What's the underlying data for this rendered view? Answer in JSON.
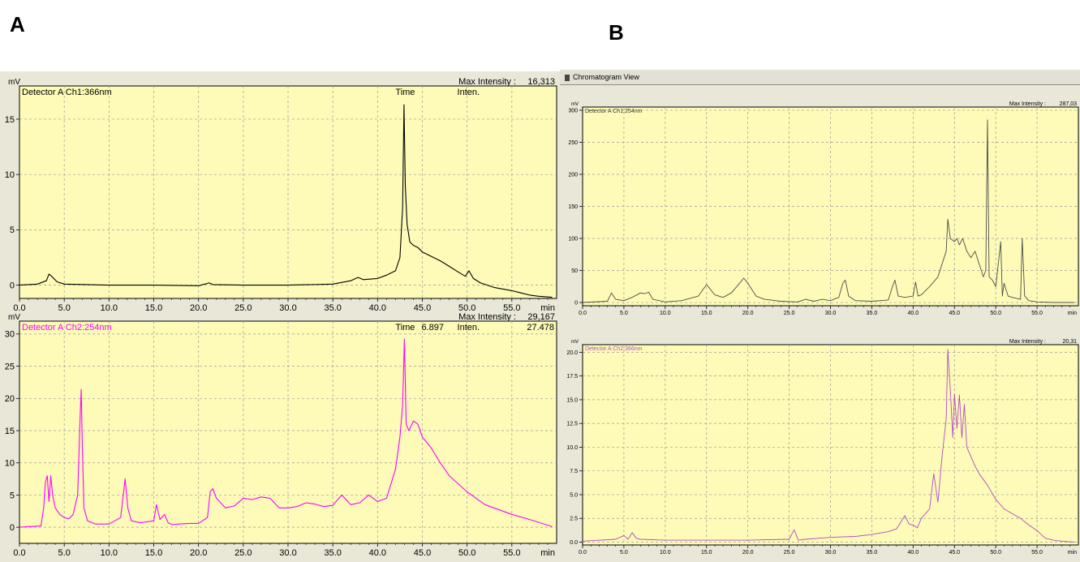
{
  "panel_labels": {
    "a": "A",
    "b": "B"
  },
  "window": {
    "title": "Chromatogram View"
  },
  "colors": {
    "plot_bg": "#fdfbb7",
    "grid": "#9b9b9b",
    "black_trace": "#000000",
    "magenta_trace": "#ff00ff",
    "pale_magenta_trace": "#b24cc8",
    "frame_bg": "#e9e7d8"
  },
  "chart_data": [
    {
      "type": "line",
      "panel": "A",
      "y_unit": "mV",
      "channel_label": "Detector A Ch1:366nm",
      "max_intensity_label": "Max Intensity :",
      "max_intensity_value": "16,313",
      "readout": {
        "time_label": "Time",
        "time_value": "",
        "inten_label": "Inten.",
        "inten_value": ""
      },
      "x_unit": "min",
      "x_ticks": [
        "0.0",
        "5.0",
        "10.0",
        "15.0",
        "20.0",
        "25.0",
        "30.0",
        "35.0",
        "40.0",
        "45.0",
        "50.0",
        "55.0"
      ],
      "y_ticks": [
        "0",
        "5",
        "10",
        "15"
      ],
      "y_tick_values": [
        0,
        5,
        10,
        15
      ],
      "xlim": [
        0,
        60
      ],
      "ylim": [
        -1.2,
        18
      ],
      "grid": true,
      "series": [
        {
          "color": "#000000",
          "x": [
            0,
            2,
            3,
            3.3,
            3.6,
            4.2,
            5,
            10,
            15,
            20,
            21.2,
            21.6,
            25,
            30,
            35,
            37,
            37.8,
            38.4,
            40,
            41,
            42,
            42.5,
            42.8,
            42.95,
            43.1,
            43.3,
            43.6,
            44,
            44.5,
            45,
            46,
            47,
            48,
            49,
            49.8,
            50.2,
            50.7,
            51.5,
            53,
            55,
            56,
            57,
            58,
            59.5
          ],
          "y": [
            0,
            0.1,
            0.4,
            1.0,
            0.8,
            0.3,
            0.1,
            0,
            0,
            -0.05,
            0.2,
            0.05,
            0,
            0,
            0.1,
            0.4,
            0.7,
            0.5,
            0.6,
            0.9,
            1.3,
            2.5,
            7,
            16.3,
            9,
            5.5,
            3.9,
            3.6,
            3.4,
            3.0,
            2.6,
            2.2,
            1.7,
            1.2,
            0.8,
            1.3,
            0.6,
            0.2,
            -0.2,
            -0.5,
            -0.7,
            -0.9,
            -1.0,
            -1.1
          ]
        }
      ]
    },
    {
      "type": "line",
      "panel": "A",
      "y_unit": "mV",
      "channel_label": "Detector A Ch2:254nm",
      "max_intensity_label": "Max Intensity :",
      "max_intensity_value": "29,167",
      "readout": {
        "time_label": "Time",
        "time_value": "6.897",
        "inten_label": "Inten.",
        "inten_value": "27.478"
      },
      "x_unit": "min",
      "x_ticks": [
        "0.0",
        "5.0",
        "10.0",
        "15.0",
        "20.0",
        "25.0",
        "30.0",
        "35.0",
        "40.0",
        "45.0",
        "50.0",
        "55.0"
      ],
      "y_ticks": [
        "0",
        "5",
        "10",
        "15",
        "20",
        "25",
        "30"
      ],
      "y_tick_values": [
        0,
        5,
        10,
        15,
        20,
        25,
        30
      ],
      "xlim": [
        0,
        60
      ],
      "ylim": [
        -2.5,
        32
      ],
      "grid": true,
      "series": [
        {
          "color": "#ff00ff",
          "x": [
            0,
            2.4,
            2.7,
            2.9,
            3.1,
            3.3,
            3.5,
            3.7,
            4.0,
            4.5,
            5,
            5.5,
            6.0,
            6.5,
            6.8,
            6.9,
            7.0,
            7.2,
            7.6,
            8.5,
            10,
            11.3,
            11.8,
            12.1,
            12.5,
            13.5,
            15,
            15.3,
            15.7,
            16.2,
            16.6,
            17.1,
            17.8,
            19,
            20,
            21,
            21.3,
            21.6,
            22,
            23,
            24,
            25,
            26,
            27,
            28,
            29,
            30,
            31,
            32,
            33,
            34,
            35,
            36,
            37,
            38,
            39,
            40,
            41,
            42,
            42.5,
            42.8,
            43.0,
            43.2,
            43.5,
            44,
            44.5,
            45,
            45.6,
            46,
            47,
            48,
            50,
            52,
            55,
            57,
            59.5
          ],
          "y": [
            0,
            0.2,
            3,
            7,
            8,
            4,
            8,
            5,
            3,
            2,
            1.5,
            1.3,
            2,
            5,
            18,
            21.4,
            14,
            3,
            1,
            0.5,
            0.5,
            1.5,
            7.5,
            3,
            1,
            0.7,
            1,
            3.5,
            1.2,
            2,
            0.7,
            0.4,
            0.5,
            0.6,
            0.6,
            1.5,
            5.5,
            6,
            4.5,
            3,
            3.3,
            4.5,
            4.3,
            4.7,
            4.5,
            3,
            3,
            3.2,
            3.8,
            3.6,
            3.2,
            3.4,
            5,
            3.5,
            3.8,
            5,
            4,
            4.5,
            9,
            14,
            19,
            29.2,
            16,
            15,
            16.5,
            16,
            14,
            13,
            12.3,
            10,
            8,
            5.5,
            3.5,
            2,
            1.2,
            0.1
          ]
        }
      ]
    },
    {
      "type": "line",
      "panel": "B",
      "y_unit": "mV",
      "channel_label": "Detector A Ch1:254nm",
      "max_intensity_label": "Max Intensity :",
      "max_intensity_value": "287,03",
      "x_unit": "min",
      "x_ticks": [
        "0.0",
        "5.0",
        "10.0",
        "15.0",
        "20.0",
        "25.0",
        "30.0",
        "35.0",
        "40.0",
        "45.0",
        "50.0",
        "55.0"
      ],
      "y_ticks": [
        "0",
        "50",
        "100",
        "150",
        "200",
        "250",
        "300"
      ],
      "y_tick_values": [
        0,
        50,
        100,
        150,
        200,
        250,
        300
      ],
      "xlim": [
        0,
        60
      ],
      "ylim": [
        -5,
        305
      ],
      "grid": true,
      "series": [
        {
          "color": "#4d4d4d",
          "x": [
            0,
            3,
            3.5,
            4,
            5,
            6,
            7,
            7.5,
            8,
            8.5,
            10,
            12,
            14,
            15,
            16,
            17,
            18,
            19,
            19.5,
            20,
            21,
            22,
            24,
            26,
            27,
            28,
            29,
            30,
            31,
            31.5,
            31.8,
            32.2,
            33,
            35,
            37,
            37.5,
            37.8,
            38.2,
            39,
            40,
            40.3,
            40.6,
            41,
            42,
            43,
            44,
            44.2,
            44.5,
            45,
            45.3,
            45.6,
            46,
            46.5,
            47,
            47.5,
            48,
            48.5,
            48.8,
            49.0,
            49.2,
            49.6,
            50,
            50.6,
            50.8,
            51.0,
            51.5,
            52,
            53,
            53.2,
            53.5,
            54,
            55,
            57,
            59.5
          ],
          "y": [
            0,
            2,
            15,
            5,
            3,
            8,
            15,
            14,
            16,
            5,
            1,
            3,
            10,
            28,
            12,
            8,
            15,
            30,
            38,
            30,
            10,
            5,
            2,
            1,
            5,
            2,
            5,
            3,
            8,
            30,
            35,
            10,
            3,
            2,
            4,
            25,
            35,
            10,
            8,
            10,
            32,
            10,
            12,
            25,
            40,
            80,
            130,
            100,
            95,
            100,
            90,
            100,
            80,
            70,
            80,
            60,
            40,
            50,
            285,
            40,
            35,
            25,
            95,
            10,
            30,
            10,
            8,
            5,
            100,
            10,
            3,
            1,
            0,
            0
          ]
        }
      ]
    },
    {
      "type": "line",
      "panel": "B",
      "y_unit": "mV",
      "channel_label": "Detector A Ch2:366nm",
      "max_intensity_label": "Max Intensity :",
      "max_intensity_value": "20,31",
      "x_unit": "min",
      "x_ticks": [
        "0.0",
        "5.0",
        "10.0",
        "15.0",
        "20.0",
        "25.0",
        "30.0",
        "35.0",
        "40.0",
        "45.0",
        "50.0",
        "55.0"
      ],
      "y_ticks": [
        "0.0",
        "2.5",
        "5.0",
        "7.5",
        "10.0",
        "12.5",
        "15.0",
        "17.5",
        "20.0"
      ],
      "y_tick_values": [
        0,
        2.5,
        5,
        7.5,
        10,
        12.5,
        15,
        17.5,
        20
      ],
      "xlim": [
        0,
        60
      ],
      "ylim": [
        -0.3,
        20.8
      ],
      "grid": true,
      "series": [
        {
          "color": "#b24cc8",
          "x": [
            0,
            4,
            5,
            5.5,
            6,
            6.5,
            7,
            10,
            15,
            20,
            25,
            25.6,
            26.1,
            27,
            30,
            33,
            35,
            37,
            38,
            39,
            39.5,
            40,
            40.5,
            41,
            42,
            42.5,
            43,
            43.5,
            44,
            44.2,
            44.5,
            44.8,
            45,
            45.3,
            45.6,
            45.9,
            46.2,
            46.5,
            47,
            47.5,
            48,
            49,
            50,
            51,
            52,
            53,
            54,
            55,
            56,
            57,
            58,
            59.5
          ],
          "y": [
            0.1,
            0.3,
            0.7,
            0.3,
            1.0,
            0.4,
            0.3,
            0.2,
            0.2,
            0.2,
            0.3,
            1.3,
            0.2,
            0.3,
            0.5,
            0.6,
            0.8,
            1.1,
            1.4,
            2.8,
            1.9,
            1.8,
            1.5,
            2.5,
            3.5,
            7.2,
            4.2,
            9,
            13,
            20.3,
            16,
            11,
            15.6,
            12,
            15.5,
            11,
            14.5,
            10,
            9,
            8,
            7.2,
            6,
            4.5,
            3.5,
            3.0,
            2.5,
            1.8,
            1.2,
            0.4,
            0.2,
            0.1,
            0
          ]
        }
      ]
    }
  ]
}
